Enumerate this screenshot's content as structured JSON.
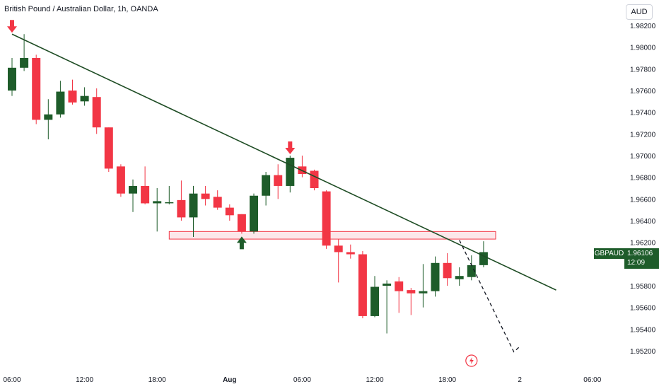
{
  "header": {
    "title": "British Pound / Australian Dollar, 1h, OANDA",
    "currency_button": "AUD"
  },
  "price_tag": {
    "symbol": "GBPAUD",
    "price": "1.96106",
    "countdown": "12:09"
  },
  "colors": {
    "up": "#1e5c2a",
    "down": "#f23645",
    "trendline": "#1f4d25",
    "zone_fill": "#fce3e6",
    "zone_border": "#f23645",
    "arrow_down": "#f23645",
    "arrow_up": "#1e5c2a"
  },
  "chart_data": {
    "type": "candlestick",
    "y_axis": {
      "ticks": [
        "1.95200",
        "1.95400",
        "1.95600",
        "1.95800",
        "1.96000",
        "1.96200",
        "1.96400",
        "1.96600",
        "1.96800",
        "1.97000",
        "1.97200",
        "1.97400",
        "1.97600",
        "1.97800",
        "1.98000",
        "1.98200"
      ],
      "min": 1.952,
      "max": 1.982
    },
    "x_axis": {
      "ticks": [
        {
          "label": "06:00",
          "index": 1
        },
        {
          "label": "12:00",
          "index": 7
        },
        {
          "label": "18:00",
          "index": 13
        },
        {
          "label": "Aug",
          "index": 19,
          "bold": true
        },
        {
          "label": "06:00",
          "index": 25
        },
        {
          "label": "12:00",
          "index": 31
        },
        {
          "label": "18:00",
          "index": 37
        },
        {
          "label": "2",
          "index": 43
        },
        {
          "label": "06:00",
          "index": 49
        }
      ]
    },
    "candles": [
      {
        "o": 1.976,
        "h": 1.979,
        "l": 1.9755,
        "c": 1.9781
      },
      {
        "o": 1.9781,
        "h": 1.9812,
        "l": 1.9778,
        "c": 1.979
      },
      {
        "o": 1.979,
        "h": 1.9793,
        "l": 1.9729,
        "c": 1.9733
      },
      {
        "o": 1.9733,
        "h": 1.9752,
        "l": 1.9715,
        "c": 1.9738
      },
      {
        "o": 1.9738,
        "h": 1.9769,
        "l": 1.9735,
        "c": 1.9759
      },
      {
        "o": 1.976,
        "h": 1.977,
        "l": 1.9747,
        "c": 1.9749
      },
      {
        "o": 1.975,
        "h": 1.9763,
        "l": 1.9746,
        "c": 1.9755
      },
      {
        "o": 1.9754,
        "h": 1.9762,
        "l": 1.972,
        "c": 1.9726
      },
      {
        "o": 1.9726,
        "h": 1.9726,
        "l": 1.9685,
        "c": 1.9688
      },
      {
        "o": 1.969,
        "h": 1.9692,
        "l": 1.9662,
        "c": 1.9665
      },
      {
        "o": 1.9665,
        "h": 1.9678,
        "l": 1.9648,
        "c": 1.9672
      },
      {
        "o": 1.9672,
        "h": 1.969,
        "l": 1.9655,
        "c": 1.9656
      },
      {
        "o": 1.9656,
        "h": 1.967,
        "l": 1.963,
        "c": 1.9658
      },
      {
        "o": 1.9657,
        "h": 1.9672,
        "l": 1.9655,
        "c": 1.9657
      },
      {
        "o": 1.9659,
        "h": 1.9677,
        "l": 1.964,
        "c": 1.9643
      },
      {
        "o": 1.9643,
        "h": 1.9672,
        "l": 1.9625,
        "c": 1.9665
      },
      {
        "o": 1.9665,
        "h": 1.9672,
        "l": 1.9654,
        "c": 1.966
      },
      {
        "o": 1.9662,
        "h": 1.9668,
        "l": 1.965,
        "c": 1.9652
      },
      {
        "o": 1.9652,
        "h": 1.9655,
        "l": 1.964,
        "c": 1.9645
      },
      {
        "o": 1.9646,
        "h": 1.9646,
        "l": 1.9628,
        "c": 1.963
      },
      {
        "o": 1.963,
        "h": 1.9665,
        "l": 1.9628,
        "c": 1.9663
      },
      {
        "o": 1.9663,
        "h": 1.9685,
        "l": 1.9654,
        "c": 1.9682
      },
      {
        "o": 1.9682,
        "h": 1.9692,
        "l": 1.966,
        "c": 1.9672
      },
      {
        "o": 1.9672,
        "h": 1.97,
        "l": 1.9666,
        "c": 1.9698
      },
      {
        "o": 1.969,
        "h": 1.97,
        "l": 1.968,
        "c": 1.9683
      },
      {
        "o": 1.9686,
        "h": 1.9687,
        "l": 1.9668,
        "c": 1.967
      },
      {
        "o": 1.9667,
        "h": 1.9668,
        "l": 1.9614,
        "c": 1.9617
      },
      {
        "o": 1.9617,
        "h": 1.9623,
        "l": 1.9583,
        "c": 1.9611
      },
      {
        "o": 1.9611,
        "h": 1.9618,
        "l": 1.9605,
        "c": 1.9609
      },
      {
        "o": 1.9609,
        "h": 1.9612,
        "l": 1.955,
        "c": 1.9552
      },
      {
        "o": 1.9552,
        "h": 1.9589,
        "l": 1.9551,
        "c": 1.9579
      },
      {
        "o": 1.958,
        "h": 1.9585,
        "l": 1.9536,
        "c": 1.9582
      },
      {
        "o": 1.9584,
        "h": 1.9588,
        "l": 1.9555,
        "c": 1.9575
      },
      {
        "o": 1.9576,
        "h": 1.9578,
        "l": 1.9553,
        "c": 1.9573
      },
      {
        "o": 1.9573,
        "h": 1.96,
        "l": 1.956,
        "c": 1.9575
      },
      {
        "o": 1.9575,
        "h": 1.9607,
        "l": 1.957,
        "c": 1.9601
      },
      {
        "o": 1.9601,
        "h": 1.961,
        "l": 1.958,
        "c": 1.9587
      },
      {
        "o": 1.9586,
        "h": 1.9597,
        "l": 1.958,
        "c": 1.9589
      },
      {
        "o": 1.9588,
        "h": 1.9608,
        "l": 1.9585,
        "c": 1.9599
      },
      {
        "o": 1.9599,
        "h": 1.9621,
        "l": 1.9597,
        "c": 1.9611
      }
    ],
    "trendline": {
      "from": {
        "index": 1,
        "value": 1.9812
      },
      "to": {
        "index": 46,
        "value": 1.9576
      }
    },
    "zone": {
      "from_index": 14,
      "to_index": 41,
      "top": 1.963,
      "bottom": 1.9623
    },
    "projection": [
      {
        "index": 38,
        "value": 1.9622
      },
      {
        "index": 42.5,
        "value": 1.9519
      },
      {
        "index": 43,
        "value": 1.9524
      }
    ],
    "markers": [
      {
        "type": "arrow-down",
        "index": 1,
        "value": 1.9812
      },
      {
        "type": "arrow-down",
        "index": 24,
        "value": 1.97
      },
      {
        "type": "arrow-up",
        "index": 20,
        "value": 1.9628
      }
    ],
    "event_icon": "flash-icon"
  }
}
